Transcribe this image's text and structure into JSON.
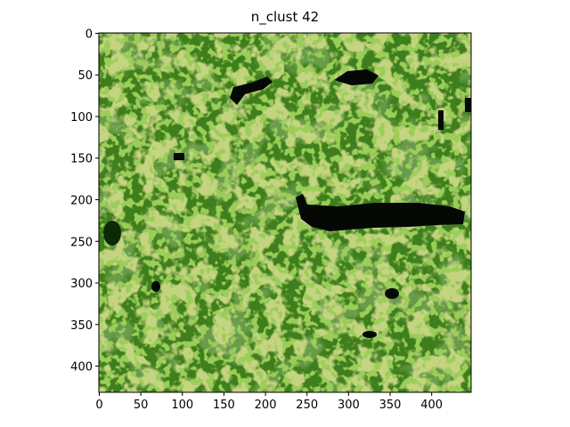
{
  "chart_data": {
    "type": "image",
    "title": "n_clust 42",
    "xlim": [
      -0.5,
      447.5
    ],
    "ylim": [
      431.5,
      -0.5
    ],
    "xticks": [
      0,
      50,
      100,
      150,
      200,
      250,
      300,
      350,
      400
    ],
    "yticks": [
      0,
      50,
      100,
      150,
      200,
      250,
      300,
      350,
      400
    ]
  }
}
